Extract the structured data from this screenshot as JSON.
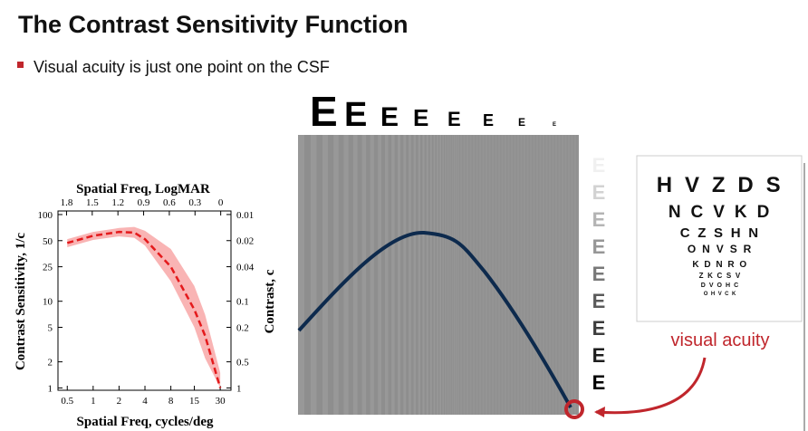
{
  "title": "The Contrast Sensitivity Function",
  "bullet": "Visual acuity is just one point on the CSF",
  "top_letters": [
    "E",
    "E",
    "E",
    "E",
    "E",
    "E",
    "E",
    "E"
  ],
  "side_letters": [
    "E",
    "E",
    "E",
    "E",
    "E",
    "E",
    "E",
    "E",
    "E"
  ],
  "eye_chart_rows": [
    "H V Z D S",
    "N C V K D",
    "C Z S H N",
    "O N V S R",
    "K D N R O",
    "Z K C S V",
    "D V O H C",
    "O H V C K"
  ],
  "annotation": "visual acuity",
  "chart_data": {
    "type": "line",
    "xlabel": "Spatial Freq, cycles/deg",
    "x2label": "Spatial Freq, LogMAR",
    "ylabel": "Contrast Sensitivity, 1/c",
    "y2label": "Contrast, c",
    "log_x": true,
    "log_y": true,
    "log_y2": true,
    "xlim": [
      0.39,
      40
    ],
    "xticks": [
      0.5,
      1,
      2,
      4,
      8,
      15,
      30
    ],
    "x2lim": [
      1.9,
      -0.12
    ],
    "x2ticks": [
      1.8,
      1.5,
      1.2,
      0.9,
      0.6,
      0.3,
      0
    ],
    "ylim": [
      0.94,
      110
    ],
    "yticks": [
      1,
      2,
      5,
      10,
      25,
      50,
      100
    ],
    "y2lim": [
      1.064,
      0.0091
    ],
    "y2ticks": [
      0.01,
      0.02,
      0.04,
      0.1,
      0.2,
      0.5,
      1
    ],
    "curve": {
      "color": "#e41a1c",
      "x": [
        0.5,
        1,
        2,
        3,
        4,
        8,
        15,
        20,
        30
      ],
      "values": [
        47,
        57,
        63,
        62,
        52,
        25,
        8,
        4,
        1
      ]
    },
    "band": {
      "color": "#f9b4b4",
      "x": [
        0.5,
        1,
        2,
        3,
        4,
        8,
        15,
        20,
        30
      ],
      "lower": [
        42,
        51,
        56,
        54,
        44,
        17,
        5,
        2.2,
        1
      ],
      "upper": [
        52,
        63,
        70,
        72,
        65,
        40,
        15,
        7,
        1.5
      ]
    }
  }
}
